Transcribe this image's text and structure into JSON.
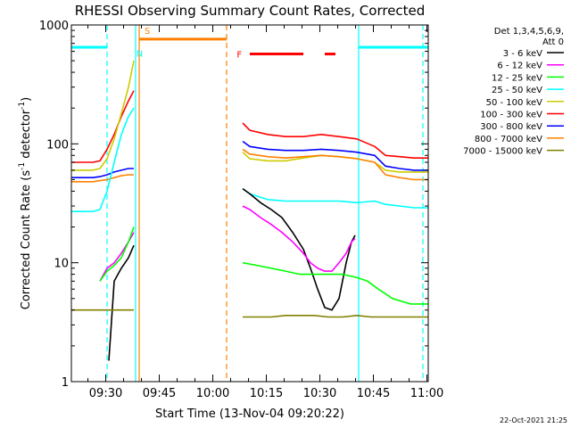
{
  "chart_data": {
    "type": "line",
    "title": "RHESSI Observing Summary Count Rates, Corrected",
    "xlabel": "Start Time (13-Nov-04 09:20:22)",
    "ylabel_pre": "Corrected Count Rate (s",
    "ylabel_sup1": "-1",
    "ylabel_mid": " detector",
    "ylabel_sup2": "-1",
    "ylabel_post": ")",
    "yscale": "log",
    "ylim": [
      1,
      1000
    ],
    "xlim_minutes": [
      0,
      100
    ],
    "x_ticks": [
      {
        "label": "09:30",
        "min": 9.63
      },
      {
        "label": "09:45",
        "min": 24.63
      },
      {
        "label": "10:00",
        "min": 39.63
      },
      {
        "label": "10:15",
        "min": 54.63
      },
      {
        "label": "10:30",
        "min": 69.63
      },
      {
        "label": "10:45",
        "min": 84.63
      },
      {
        "label": "11:00",
        "min": 99.63
      }
    ],
    "y_ticks": [
      {
        "label": "1",
        "value": 1
      },
      {
        "label": "10",
        "value": 10
      },
      {
        "label": "100",
        "value": 100
      },
      {
        "label": "1000",
        "value": 1000
      }
    ],
    "legend_header": [
      "Det 1,3,4,5,6,9,",
      "Att 0"
    ],
    "legend": [
      {
        "label": "3 - 6 keV",
        "color": "#000000"
      },
      {
        "label": "6 - 12 keV",
        "color": "#ff00ff"
      },
      {
        "label": "12 - 25 keV",
        "color": "#00ff00"
      },
      {
        "label": "25 - 50 keV",
        "color": "#00ffff"
      },
      {
        "label": "50 - 100 keV",
        "color": "#cccc00"
      },
      {
        "label": "100 - 300 keV",
        "color": "#ff0000"
      },
      {
        "label": "300 - 800 keV",
        "color": "#0000ff"
      },
      {
        "label": "800 - 7000 keV",
        "color": "#ff8000"
      },
      {
        "label": "7000 - 15000 keV",
        "color": "#808000"
      }
    ],
    "annotations": [
      {
        "text": "S",
        "color": "#ff8000"
      },
      {
        "text": "N",
        "color": "#00ffff"
      },
      {
        "text": "F",
        "color": "#ff0000"
      }
    ],
    "series": [
      {
        "name": "100 - 300 keV",
        "color": "#ff0000",
        "segments": [
          {
            "x": [
              0,
              6,
              8,
              10,
              12,
              14,
              16,
              17.5
            ],
            "y": [
              70,
              70,
              72,
              90,
              120,
              170,
              230,
              280
            ]
          },
          {
            "x": [
              48,
              50,
              55,
              60,
              65,
              70,
              75,
              80,
              85,
              88,
              92,
              96,
              100
            ],
            "y": [
              150,
              130,
              120,
              115,
              115,
              120,
              115,
              110,
              95,
              80,
              78,
              76,
              76
            ]
          }
        ]
      },
      {
        "name": "50 - 100 keV",
        "color": "#cccc00",
        "segments": [
          {
            "x": [
              0,
              6,
              8,
              10,
              12,
              14,
              16,
              17.5
            ],
            "y": [
              60,
              60,
              62,
              75,
              110,
              180,
              300,
              500
            ]
          },
          {
            "x": [
              48,
              50,
              55,
              60,
              65,
              70,
              75,
              80,
              85,
              88,
              92,
              96,
              100
            ],
            "y": [
              85,
              75,
              72,
              72,
              76,
              80,
              78,
              75,
              70,
              60,
              58,
              58,
              58
            ]
          }
        ]
      },
      {
        "name": "300 - 800 keV",
        "color": "#0000ff",
        "segments": [
          {
            "x": [
              0,
              6,
              8,
              10,
              12,
              14,
              16,
              17.5
            ],
            "y": [
              52,
              52,
              53,
              55,
              58,
              60,
              62,
              62
            ]
          },
          {
            "x": [
              48,
              50,
              55,
              60,
              65,
              70,
              75,
              80,
              85,
              88,
              92,
              96,
              100
            ],
            "y": [
              105,
              95,
              90,
              88,
              88,
              90,
              88,
              85,
              80,
              65,
              62,
              60,
              60
            ]
          }
        ]
      },
      {
        "name": "800 - 7000 keV",
        "color": "#ff8000",
        "segments": [
          {
            "x": [
              0,
              6,
              8,
              10,
              12,
              14,
              16,
              17.5
            ],
            "y": [
              48,
              48,
              49,
              50,
              52,
              54,
              55,
              55
            ]
          },
          {
            "x": [
              48,
              50,
              55,
              60,
              65,
              70,
              75,
              80,
              85,
              88,
              92,
              96,
              100
            ],
            "y": [
              90,
              82,
              78,
              76,
              78,
              80,
              78,
              75,
              70,
              55,
              52,
              50,
              50
            ]
          }
        ]
      },
      {
        "name": "25 - 50 keV",
        "color": "#00ffff",
        "segments": [
          {
            "x": [
              0,
              6,
              8,
              10,
              12,
              14,
              16,
              17.5
            ],
            "y": [
              27,
              27,
              28,
              40,
              70,
              120,
              170,
              200
            ]
          },
          {
            "x": [
              48,
              50,
              55,
              60,
              65,
              70,
              75,
              80,
              85,
              88,
              92,
              96,
              100
            ],
            "y": [
              42,
              38,
              34,
              33,
              33,
              33,
              33,
              32,
              33,
              31,
              30,
              29,
              29
            ]
          }
        ]
      },
      {
        "name": "3 - 6 keV",
        "color": "#000000",
        "segments": [
          {
            "x": [
              10.5,
              12,
              14,
              16,
              17.5
            ],
            "y": [
              1.5,
              7,
              9,
              11,
              14
            ]
          },
          {
            "x": [
              48,
              50,
              53,
              56,
              59,
              62,
              65,
              67,
              69,
              71,
              73,
              75,
              77,
              78.5,
              79.5
            ],
            "y": [
              42,
              38,
              32,
              28,
              24,
              18,
              13,
              9,
              6,
              4.2,
              4,
              5,
              10,
              15,
              17
            ]
          }
        ]
      },
      {
        "name": "6 - 12 keV",
        "color": "#ff00ff",
        "segments": [
          {
            "x": [
              8,
              10,
              12,
              14,
              16,
              17.5
            ],
            "y": [
              7,
              9,
              10,
              12,
              15,
              18
            ]
          },
          {
            "x": [
              48,
              50,
              53,
              56,
              59,
              62,
              65,
              67,
              69,
              71,
              73,
              75,
              77,
              78.5,
              79.5
            ],
            "y": [
              30,
              28,
              24,
              21,
              18,
              15,
              12,
              10,
              9,
              8.5,
              8.5,
              10,
              12,
              15,
              16
            ]
          }
        ]
      },
      {
        "name": "12 - 25 keV",
        "color": "#00ff00",
        "segments": [
          {
            "x": [
              8,
              10,
              12,
              14,
              16,
              17.5
            ],
            "y": [
              7,
              8.5,
              9.5,
              11,
              15,
              20
            ]
          },
          {
            "x": [
              48,
              52,
              56,
              60,
              64,
              68,
              72,
              76,
              80,
              83,
              86,
              90,
              95,
              100
            ],
            "y": [
              10,
              9.5,
              9,
              8.5,
              8,
              8,
              8,
              8,
              7.5,
              7,
              6,
              5,
              4.5,
              4.5
            ]
          }
        ]
      },
      {
        "name": "7000 - 15000 keV",
        "color": "#808000",
        "segments": [
          {
            "x": [
              0,
              4,
              8,
              12,
              16,
              17.5
            ],
            "y": [
              4,
              4,
              4,
              4,
              4,
              4
            ]
          },
          {
            "x": [
              48,
              52,
              56,
              60,
              64,
              68,
              72,
              76,
              80,
              84,
              88,
              92,
              96,
              100
            ],
            "y": [
              3.5,
              3.5,
              3.5,
              3.6,
              3.6,
              3.6,
              3.5,
              3.5,
              3.6,
              3.5,
              3.5,
              3.5,
              3.5,
              3.5
            ]
          }
        ]
      }
    ],
    "flag_bars": [
      {
        "label": "N",
        "color": "#00ffff",
        "y": 650,
        "x": [
          0,
          10
        ]
      },
      {
        "label": "N",
        "color": "#00ffff",
        "y": 650,
        "x": [
          80.5,
          100
        ]
      },
      {
        "label": "S",
        "color": "#ff8000",
        "y": 760,
        "x": [
          19,
          43.5
        ]
      },
      {
        "label": "F",
        "color": "#ff0000",
        "y": 570,
        "x": [
          50,
          65
        ]
      },
      {
        "label": "F",
        "color": "#ff0000",
        "y": 570,
        "x": [
          71,
          74
        ]
      }
    ],
    "vertical_markers": [
      {
        "x": 10,
        "color": "#00ffff",
        "style": "dashed"
      },
      {
        "x": 18,
        "color": "#00ffff",
        "style": "solid"
      },
      {
        "x": 19,
        "color": "#ff8000",
        "style": "solid"
      },
      {
        "x": 43.5,
        "color": "#ff8000",
        "style": "dashed"
      },
      {
        "x": 80.5,
        "color": "#00ffff",
        "style": "solid"
      },
      {
        "x": 98.5,
        "color": "#00ffff",
        "style": "dashed"
      }
    ]
  },
  "footer_timestamp": "22-Oct-2021 21:25"
}
